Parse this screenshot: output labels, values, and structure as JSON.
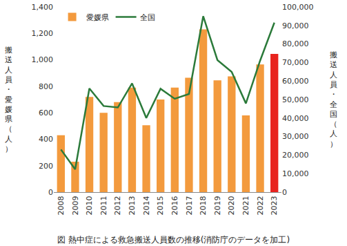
{
  "chart_data": {
    "type": "bar",
    "title": "図 熱中症による救急搬送人員数の推移(消防庁のデータを加工)",
    "categories": [
      "2008",
      "2009",
      "2010",
      "2011",
      "2012",
      "2013",
      "2014",
      "2015",
      "2016",
      "2017",
      "2018",
      "2019",
      "2020",
      "2021",
      "2022",
      "2023"
    ],
    "series": [
      {
        "name": "愛媛県",
        "type": "bar",
        "colors": [
          "#f39a3d",
          "#f39a3d",
          "#f39a3d",
          "#f39a3d",
          "#f39a3d",
          "#f39a3d",
          "#f39a3d",
          "#f39a3d",
          "#f39a3d",
          "#f39a3d",
          "#f39a3d",
          "#f39a3d",
          "#f39a3d",
          "#f39a3d",
          "#f39a3d",
          "#e8231e"
        ],
        "values": [
          430,
          230,
          720,
          600,
          680,
          790,
          505,
          700,
          790,
          865,
          1230,
          845,
          875,
          580,
          965,
          1045
        ]
      },
      {
        "name": "全国",
        "type": "line",
        "color": "#2b7a3a",
        "axis": "y2",
        "values": [
          23000,
          12300,
          56000,
          46500,
          45700,
          58700,
          40000,
          55800,
          50400,
          53000,
          95000,
          71300,
          64900,
          47900,
          71000,
          91500
        ]
      }
    ],
    "y_label": "搬送人員・愛媛県（人）",
    "y2_label": "搬送人員・全国（人）",
    "ylim": [
      0,
      1400
    ],
    "yticks": [
      0,
      200,
      400,
      600,
      800,
      {
        "value": 1000,
        "label": "1,000"
      },
      {
        "value": 1200,
        "label": "1,200"
      },
      {
        "value": 1400,
        "label": "1,400"
      }
    ],
    "y2lim": [
      0,
      100000
    ],
    "y2ticks": [
      0,
      {
        "value": 10000,
        "label": "10,000"
      },
      {
        "value": 20000,
        "label": "20,000"
      },
      {
        "value": 30000,
        "label": "30,000"
      },
      {
        "value": 40000,
        "label": "40,000"
      },
      {
        "value": 50000,
        "label": "50,000"
      },
      {
        "value": 60000,
        "label": "60,000"
      },
      {
        "value": 70000,
        "label": "70,000"
      },
      {
        "value": 80000,
        "label": "80,000"
      },
      {
        "value": 90000,
        "label": "90,000"
      },
      {
        "value": 100000,
        "label": "100,000"
      }
    ],
    "grid": false,
    "legend": "upper left"
  }
}
